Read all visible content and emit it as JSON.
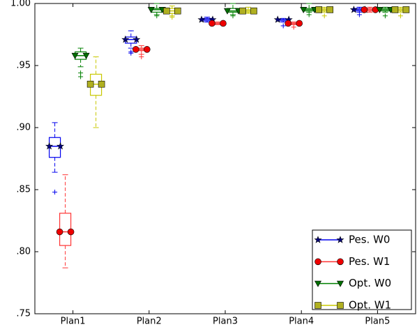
{
  "chart_data": {
    "type": "box",
    "categories": [
      "Plan1",
      "Plan2",
      "Plan3",
      "Plan4",
      "Plan5"
    ],
    "ylim": [
      0.75,
      1.0
    ],
    "yticks": [
      {
        "value": 0.75,
        "label": ".75"
      },
      {
        "value": 0.8,
        "label": ".80"
      },
      {
        "value": 0.85,
        "label": ".85"
      },
      {
        "value": 0.9,
        "label": ".90"
      },
      {
        "value": 0.95,
        "label": ".95"
      },
      {
        "value": 1.0,
        "label": "1.00"
      }
    ],
    "legend": "lower right",
    "series": [
      {
        "name": "Pes. W0",
        "color": "#0000ee",
        "marker": "star",
        "marker_color": "#000080",
        "boxes": [
          {
            "whislo": 0.864,
            "q1": 0.876,
            "med": 0.885,
            "q3": 0.892,
            "whishi": 0.904,
            "fliers": [
              0.848
            ]
          },
          {
            "whislo": 0.964,
            "q1": 0.968,
            "med": 0.971,
            "q3": 0.973,
            "whishi": 0.978,
            "fliers": [
              0.961,
              0.96
            ]
          },
          {
            "whislo": 0.985,
            "q1": 0.986,
            "med": 0.987,
            "q3": 0.988,
            "whishi": 0.989,
            "fliers": []
          },
          {
            "whislo": 0.985,
            "q1": 0.986,
            "med": 0.987,
            "q3": 0.987,
            "whishi": 0.988,
            "fliers": [
              0.982
            ]
          },
          {
            "whislo": 0.993,
            "q1": 0.994,
            "med": 0.995,
            "q3": 0.996,
            "whishi": 0.997,
            "fliers": [
              0.991
            ]
          }
        ]
      },
      {
        "name": "Pes. W1",
        "color": "#ff3333",
        "marker": "circle",
        "marker_color": "#ee0000",
        "boxes": [
          {
            "whislo": 0.787,
            "q1": 0.805,
            "med": 0.816,
            "q3": 0.831,
            "whishi": 0.862,
            "fliers": []
          },
          {
            "whislo": 0.959,
            "q1": 0.962,
            "med": 0.963,
            "q3": 0.964,
            "whishi": 0.966,
            "fliers": [
              0.957
            ]
          },
          {
            "whislo": 0.983,
            "q1": 0.983,
            "med": 0.984,
            "q3": 0.985,
            "whishi": 0.985,
            "fliers": []
          },
          {
            "whislo": 0.983,
            "q1": 0.983,
            "med": 0.984,
            "q3": 0.985,
            "whishi": 0.985,
            "fliers": [
              0.981
            ]
          },
          {
            "whislo": 0.993,
            "q1": 0.994,
            "med": 0.995,
            "q3": 0.996,
            "whishi": 0.997,
            "fliers": []
          }
        ]
      },
      {
        "name": "Opt. W0",
        "color": "#008000",
        "marker": "triangle",
        "marker_color": "#007000",
        "boxes": [
          {
            "whislo": 0.949,
            "q1": 0.955,
            "med": 0.958,
            "q3": 0.961,
            "whishi": 0.964,
            "fliers": [
              0.944,
              0.941
            ]
          },
          {
            "whislo": 0.991,
            "q1": 0.993,
            "med": 0.995,
            "q3": 0.996,
            "whishi": 1.0,
            "fliers": [
              0.99
            ]
          },
          {
            "whislo": 0.991,
            "q1": 0.993,
            "med": 0.994,
            "q3": 0.996,
            "whishi": 1.0,
            "fliers": [
              0.99
            ]
          },
          {
            "whislo": 0.993,
            "q1": 0.994,
            "med": 0.995,
            "q3": 0.996,
            "whishi": 1.0,
            "fliers": [
              0.991
            ]
          },
          {
            "whislo": 0.993,
            "q1": 0.994,
            "med": 0.995,
            "q3": 0.996,
            "whishi": 0.997,
            "fliers": [
              0.99
            ]
          }
        ]
      },
      {
        "name": "Opt. W1",
        "color": "#c8c800",
        "marker": "square",
        "marker_color": "#b0b020",
        "boxes": [
          {
            "whislo": 0.9,
            "q1": 0.926,
            "med": 0.935,
            "q3": 0.943,
            "whishi": 0.957,
            "fliers": []
          },
          {
            "whislo": 0.99,
            "q1": 0.992,
            "med": 0.994,
            "q3": 0.996,
            "whishi": 0.998,
            "fliers": [
              0.989
            ]
          },
          {
            "whislo": 0.992,
            "q1": 0.993,
            "med": 0.994,
            "q3": 0.995,
            "whishi": 0.997,
            "fliers": []
          },
          {
            "whislo": 0.993,
            "q1": 0.994,
            "med": 0.995,
            "q3": 0.996,
            "whishi": 0.997,
            "fliers": [
              0.99
            ]
          },
          {
            "whislo": 0.993,
            "q1": 0.994,
            "med": 0.995,
            "q3": 0.996,
            "whishi": 0.997,
            "fliers": [
              0.99
            ]
          }
        ]
      }
    ]
  }
}
